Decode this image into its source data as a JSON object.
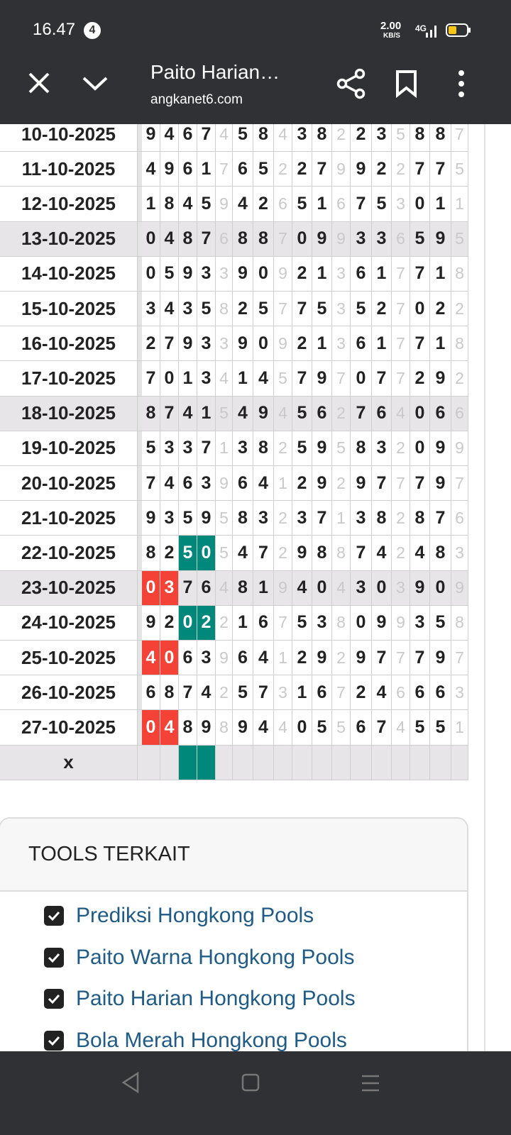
{
  "status_bar": {
    "time": "16.47",
    "notification_count": "4",
    "network_speed": "2.00",
    "network_speed_unit": "KB/S",
    "network_type": "4G"
  },
  "browser": {
    "page_title": "Paito Harian…",
    "url": "angkanet6.com"
  },
  "table": {
    "faint_columns": [
      4,
      7,
      10,
      13,
      16
    ],
    "rows": [
      {
        "date": "10-10-2025",
        "digits": [
          "9",
          "4",
          "6",
          "7",
          "4",
          "5",
          "8",
          "4",
          "3",
          "8",
          "2",
          "2",
          "3",
          "5",
          "8",
          "8",
          "7"
        ],
        "shaded": false
      },
      {
        "date": "11-10-2025",
        "digits": [
          "4",
          "9",
          "6",
          "1",
          "7",
          "6",
          "5",
          "2",
          "2",
          "7",
          "9",
          "9",
          "2",
          "2",
          "7",
          "7",
          "5"
        ],
        "shaded": false
      },
      {
        "date": "12-10-2025",
        "digits": [
          "1",
          "8",
          "4",
          "5",
          "9",
          "4",
          "2",
          "6",
          "5",
          "1",
          "6",
          "7",
          "5",
          "3",
          "0",
          "1",
          "1"
        ],
        "shaded": false
      },
      {
        "date": "13-10-2025",
        "digits": [
          "0",
          "4",
          "8",
          "7",
          "6",
          "8",
          "8",
          "7",
          "0",
          "9",
          "9",
          "3",
          "3",
          "6",
          "5",
          "9",
          "5"
        ],
        "shaded": true
      },
      {
        "date": "14-10-2025",
        "digits": [
          "0",
          "5",
          "9",
          "3",
          "3",
          "9",
          "0",
          "9",
          "2",
          "1",
          "3",
          "6",
          "1",
          "7",
          "7",
          "1",
          "8"
        ],
        "shaded": false
      },
      {
        "date": "15-10-2025",
        "digits": [
          "3",
          "4",
          "3",
          "5",
          "8",
          "2",
          "5",
          "7",
          "7",
          "5",
          "3",
          "5",
          "2",
          "7",
          "0",
          "2",
          "2"
        ],
        "shaded": false
      },
      {
        "date": "16-10-2025",
        "digits": [
          "2",
          "7",
          "9",
          "3",
          "3",
          "9",
          "0",
          "9",
          "2",
          "1",
          "3",
          "6",
          "1",
          "7",
          "7",
          "1",
          "8"
        ],
        "shaded": false
      },
      {
        "date": "17-10-2025",
        "digits": [
          "7",
          "0",
          "1",
          "3",
          "4",
          "1",
          "4",
          "5",
          "7",
          "9",
          "7",
          "0",
          "7",
          "7",
          "2",
          "9",
          "2"
        ],
        "shaded": false
      },
      {
        "date": "18-10-2025",
        "digits": [
          "8",
          "7",
          "4",
          "1",
          "5",
          "4",
          "9",
          "4",
          "5",
          "6",
          "2",
          "7",
          "6",
          "4",
          "0",
          "6",
          "6"
        ],
        "shaded": true
      },
      {
        "date": "19-10-2025",
        "digits": [
          "5",
          "3",
          "3",
          "7",
          "1",
          "3",
          "8",
          "2",
          "5",
          "9",
          "5",
          "8",
          "3",
          "2",
          "0",
          "9",
          "9"
        ],
        "shaded": false
      },
      {
        "date": "20-10-2025",
        "digits": [
          "7",
          "4",
          "6",
          "3",
          "9",
          "6",
          "4",
          "1",
          "2",
          "9",
          "2",
          "9",
          "7",
          "7",
          "7",
          "9",
          "7"
        ],
        "shaded": false
      },
      {
        "date": "21-10-2025",
        "digits": [
          "9",
          "3",
          "5",
          "9",
          "5",
          "8",
          "3",
          "2",
          "3",
          "7",
          "1",
          "3",
          "8",
          "2",
          "8",
          "7",
          "6"
        ],
        "shaded": false
      },
      {
        "date": "22-10-2025",
        "digits": [
          "8",
          "2",
          "5",
          "0",
          "5",
          "4",
          "7",
          "2",
          "9",
          "8",
          "8",
          "7",
          "4",
          "2",
          "4",
          "8",
          "3"
        ],
        "shaded": false,
        "highlight": {
          "color": "#00897b",
          "columns": [
            2,
            3
          ]
        }
      },
      {
        "date": "23-10-2025",
        "digits": [
          "0",
          "3",
          "7",
          "6",
          "4",
          "8",
          "1",
          "9",
          "4",
          "0",
          "4",
          "3",
          "0",
          "3",
          "9",
          "0",
          "9"
        ],
        "shaded": true,
        "highlight": {
          "color": "#f44336",
          "columns": [
            0,
            1
          ]
        }
      },
      {
        "date": "24-10-2025",
        "digits": [
          "9",
          "2",
          "0",
          "2",
          "2",
          "1",
          "6",
          "7",
          "5",
          "3",
          "8",
          "0",
          "9",
          "9",
          "3",
          "5",
          "8"
        ],
        "shaded": false,
        "highlight": {
          "color": "#00897b",
          "columns": [
            2,
            3
          ]
        }
      },
      {
        "date": "25-10-2025",
        "digits": [
          "4",
          "0",
          "6",
          "3",
          "9",
          "6",
          "4",
          "1",
          "2",
          "9",
          "2",
          "9",
          "7",
          "7",
          "7",
          "9",
          "7"
        ],
        "shaded": false,
        "highlight": {
          "color": "#f44336",
          "columns": [
            0,
            1
          ]
        }
      },
      {
        "date": "26-10-2025",
        "digits": [
          "6",
          "8",
          "7",
          "4",
          "2",
          "5",
          "7",
          "3",
          "1",
          "6",
          "7",
          "2",
          "4",
          "6",
          "6",
          "6",
          "3"
        ],
        "shaded": false
      },
      {
        "date": "27-10-2025",
        "digits": [
          "0",
          "4",
          "8",
          "9",
          "8",
          "9",
          "4",
          "4",
          "0",
          "5",
          "5",
          "6",
          "7",
          "4",
          "5",
          "5",
          "1"
        ],
        "shaded": false,
        "highlight": {
          "color": "#f44336",
          "columns": [
            0,
            1
          ]
        }
      }
    ],
    "footer": {
      "label": "x",
      "highlight": {
        "color": "#00897b",
        "columns": [
          2,
          3
        ]
      }
    }
  },
  "tools": {
    "title": "TOOLS TERKAIT",
    "links": [
      "Prediksi Hongkong Pools",
      "Paito Warna Hongkong Pools",
      "Paito Harian Hongkong Pools",
      "Bola Merah Hongkong Pools"
    ]
  }
}
